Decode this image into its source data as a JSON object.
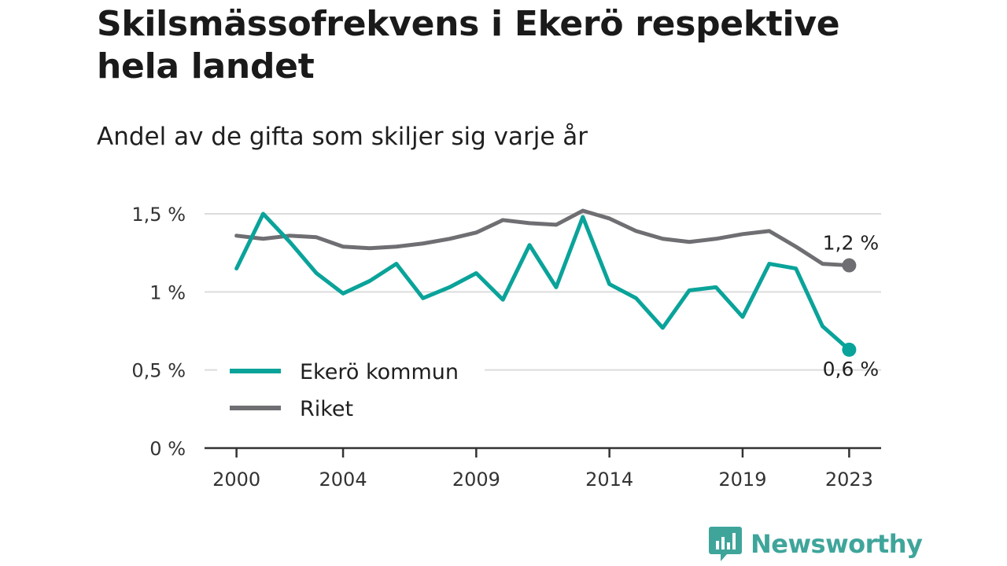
{
  "header": {
    "title": "Skilsmässofrekvens i Ekerö respektive hela landet",
    "subtitle": "Andel av de gifta som skiljer sig varje år"
  },
  "brand": {
    "name": "Newsworthy"
  },
  "colors": {
    "ekero": "#0aa39a",
    "riket": "#6f6f73",
    "grid": "#dcdcdc",
    "axis": "#333333",
    "brand": "#3fa59b"
  },
  "chart_data": {
    "type": "line",
    "x": [
      2000,
      2001,
      2002,
      2003,
      2004,
      2005,
      2006,
      2007,
      2008,
      2009,
      2010,
      2011,
      2012,
      2013,
      2014,
      2015,
      2016,
      2017,
      2018,
      2019,
      2020,
      2021,
      2022,
      2023
    ],
    "series": [
      {
        "name": "Ekerö kommun",
        "values": [
          1.15,
          1.5,
          1.32,
          1.12,
          0.99,
          1.07,
          1.18,
          0.96,
          1.03,
          1.12,
          0.95,
          1.3,
          1.03,
          1.48,
          1.05,
          0.96,
          0.77,
          1.01,
          1.03,
          0.84,
          1.18,
          1.15,
          0.78,
          0.63
        ],
        "end_label": "0,6 %"
      },
      {
        "name": "Riket",
        "values": [
          1.36,
          1.34,
          1.36,
          1.35,
          1.29,
          1.28,
          1.29,
          1.31,
          1.34,
          1.38,
          1.46,
          1.44,
          1.43,
          1.52,
          1.47,
          1.39,
          1.34,
          1.32,
          1.34,
          1.37,
          1.39,
          1.29,
          1.18,
          1.17
        ],
        "end_label": "1,2 %"
      }
    ],
    "xticks": [
      {
        "value": 2000,
        "label": "2000"
      },
      {
        "value": 2004,
        "label": "2004"
      },
      {
        "value": 2009,
        "label": "2009"
      },
      {
        "value": 2014,
        "label": "2014"
      },
      {
        "value": 2019,
        "label": "2019"
      },
      {
        "value": 2023,
        "label": "2023"
      }
    ],
    "yticks": [
      {
        "value": 0,
        "label": "0 %"
      },
      {
        "value": 0.5,
        "label": "0,5 %"
      },
      {
        "value": 1,
        "label": "1 %"
      },
      {
        "value": 1.5,
        "label": "1,5 %"
      }
    ],
    "xlim": [
      1998.8,
      2024.2
    ],
    "ylim": [
      0,
      1.5
    ],
    "grid": true,
    "legend_position": "bottom-left"
  }
}
